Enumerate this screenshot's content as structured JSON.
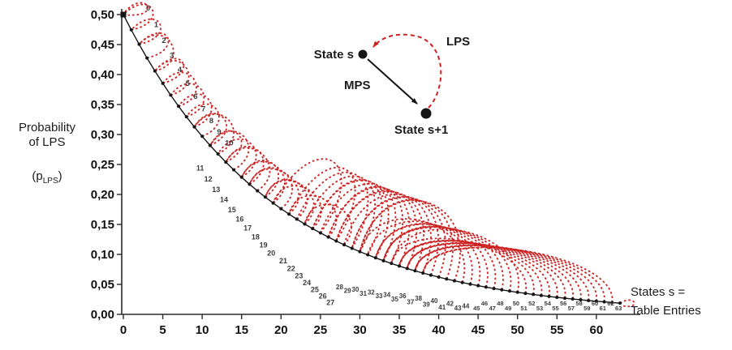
{
  "figure": {
    "ylabel": {
      "line1": "Probability",
      "line2": "of LPS",
      "p_open": "(p",
      "p_sub": "LPS",
      "p_close": ")"
    },
    "xlabel": {
      "line1": "States s =",
      "line2": "Table Entries"
    },
    "inset": {
      "state_s": "State s",
      "mps": "MPS",
      "state_s_plus_1": "State s+1",
      "lps": "LPS"
    }
  },
  "colors": {
    "transition_red": "#cc2222",
    "curve_black": "#151515",
    "axis": "#2b2b2b",
    "state_label": "#3c3c3c",
    "tick_label": "#111111"
  },
  "chart_data": {
    "type": "line",
    "xlabel": "States s = Table Entries",
    "ylabel": "Probability of LPS (pLPS)",
    "xlim": [
      0,
      63
    ],
    "ylim": [
      0,
      0.5
    ],
    "grid": false,
    "x_ticks": [
      0,
      5,
      10,
      15,
      20,
      25,
      30,
      35,
      40,
      45,
      50,
      55,
      60
    ],
    "y_ticks": {
      "values": [
        0.0,
        0.05,
        0.1,
        0.15,
        0.2,
        0.25,
        0.3,
        0.35,
        0.4,
        0.45,
        0.5
      ],
      "labels": [
        "0,00",
        "0,05",
        "0,10",
        "0,15",
        "0,20",
        "0,25",
        "0,30",
        "0,35",
        "0,40",
        "0,45",
        "0,50"
      ]
    },
    "series": [
      {
        "name": "p_lps",
        "description": "LPS probability per state s, p(s)=0.5*0.9492^s, each point labeled with its state index",
        "values": [
          0.5,
          0.4746,
          0.4505,
          0.4276,
          0.4059,
          0.3853,
          0.3657,
          0.3471,
          0.3295,
          0.3127,
          0.2969,
          0.2818,
          0.2675,
          0.2539,
          0.241,
          0.2287,
          0.2171,
          0.2061,
          0.1956,
          0.1857,
          0.1762,
          0.1673,
          0.1588,
          0.1507,
          0.1431,
          0.1358,
          0.1289,
          0.1223,
          0.1161,
          0.1102,
          0.1046,
          0.0993,
          0.0942,
          0.0894,
          0.0849,
          0.0806,
          0.0765,
          0.0726,
          0.0689,
          0.0654,
          0.0621,
          0.0589,
          0.0559,
          0.0531,
          0.0504,
          0.0478,
          0.0454,
          0.0431,
          0.0409,
          0.0388,
          0.0368,
          0.035,
          0.0332,
          0.0315,
          0.0299,
          0.0284,
          0.0269,
          0.0256,
          0.0243,
          0.023,
          0.0219,
          0.0208,
          0.0197,
          0.0187
        ]
      },
      {
        "name": "lps_transition_target",
        "description": "Red dashed arcs: state reached after observing an LPS at state s",
        "values": [
          0,
          0,
          1,
          2,
          2,
          4,
          4,
          5,
          6,
          7,
          8,
          9,
          9,
          11,
          11,
          12,
          13,
          13,
          15,
          15,
          16,
          16,
          18,
          18,
          19,
          19,
          21,
          21,
          23,
          22,
          23,
          24,
          24,
          25,
          26,
          26,
          27,
          27,
          28,
          29,
          29,
          30,
          30,
          30,
          31,
          32,
          32,
          33,
          33,
          33,
          34,
          34,
          35,
          35,
          35,
          36,
          36,
          36,
          37,
          37,
          37,
          38,
          38,
          63
        ]
      }
    ]
  }
}
